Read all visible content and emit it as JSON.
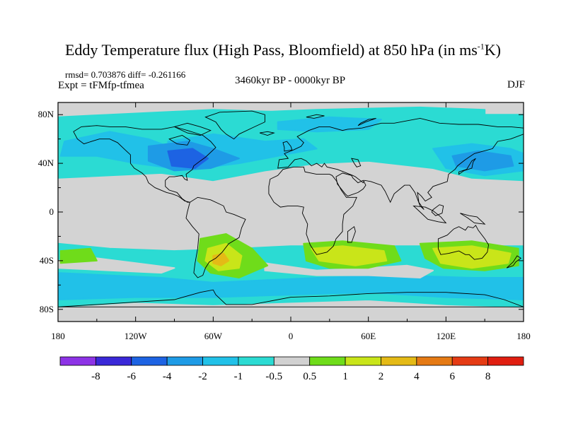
{
  "title": {
    "main_before_sup": "Eddy Temperature flux (High Pass, Bloomfield) at 850 hPa (in ms",
    "sup": "-1",
    "main_after_sup": "K)"
  },
  "stats_text": "rmsd= 0.703876 diff= -0.261166",
  "expt_text": "Expt = tFMfp-tfmea",
  "period_text": "3460kyr BP - 0000kyr BP",
  "season_text": "DJF",
  "axes": {
    "lat_labels": [
      "80N",
      "40N",
      "0",
      "40S",
      "80S"
    ],
    "lat_values": [
      80,
      40,
      0,
      -40,
      -80
    ],
    "lon_labels": [
      "180",
      "120W",
      "60W",
      "0",
      "60E",
      "120E",
      "180"
    ],
    "lon_values": [
      -180,
      -120,
      -60,
      0,
      60,
      120,
      180
    ],
    "lat_range": [
      -90,
      90
    ],
    "lon_range": [
      -180,
      180
    ]
  },
  "colorbar": {
    "labels": [
      "-8",
      "-6",
      "-4",
      "-2",
      "-1",
      "-0.5",
      "0.5",
      "1",
      "2",
      "4",
      "6",
      "8"
    ],
    "colors": [
      "#8d33e6",
      "#3a28d8",
      "#1d63e3",
      "#1e9be6",
      "#21c1e8",
      "#2bdbd3",
      "#d1d1d1",
      "#6fdc1a",
      "#c9e519",
      "#e4ba16",
      "#e57a14",
      "#e53b14",
      "#e01e10"
    ]
  },
  "map_colors": {
    "background": "#d3d3d3",
    "coast": "#000000",
    "neg_weak": "#2bdbd3",
    "neg_mid": "#21c1e8",
    "neg_strong": "#1e9be6",
    "neg_stronger": "#1d63e3",
    "pos_weak": "#6fdc1a",
    "pos_mid": "#c9e519",
    "pos_strong": "#e4ba16"
  }
}
